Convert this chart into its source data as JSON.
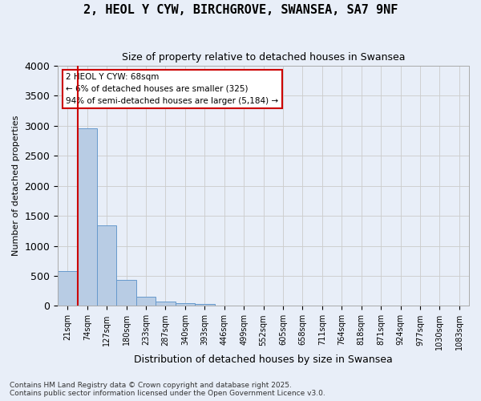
{
  "title": "2, HEOL Y CYW, BIRCHGROVE, SWANSEA, SA7 9NF",
  "subtitle": "Size of property relative to detached houses in Swansea",
  "xlabel": "Distribution of detached houses by size in Swansea",
  "ylabel": "Number of detached properties",
  "footnote1": "Contains HM Land Registry data © Crown copyright and database right 2025.",
  "footnote2": "Contains public sector information licensed under the Open Government Licence v3.0.",
  "annotation_line1": "2 HEOL Y CYW: 68sqm",
  "annotation_line2": "← 6% of detached houses are smaller (325)",
  "annotation_line3": "94% of semi-detached houses are larger (5,184) →",
  "bar_color": "#b8cce4",
  "bar_edge_color": "#6699cc",
  "grid_color": "#cccccc",
  "background_color": "#e8eef8",
  "red_line_color": "#cc0000",
  "annotation_box_edge": "#cc0000",
  "tick_labels": [
    "21sqm",
    "74sqm",
    "127sqm",
    "180sqm",
    "233sqm",
    "287sqm",
    "340sqm",
    "393sqm",
    "446sqm",
    "499sqm",
    "552sqm",
    "605sqm",
    "658sqm",
    "711sqm",
    "764sqm",
    "818sqm",
    "871sqm",
    "924sqm",
    "977sqm",
    "1030sqm",
    "1083sqm"
  ],
  "values": [
    575,
    2960,
    1340,
    430,
    155,
    75,
    45,
    35,
    0,
    0,
    0,
    0,
    0,
    0,
    0,
    0,
    0,
    0,
    0,
    0,
    0
  ],
  "red_line_x": 0.5,
  "ylim": [
    0,
    4000
  ],
  "yticks": [
    0,
    500,
    1000,
    1500,
    2000,
    2500,
    3000,
    3500,
    4000
  ]
}
